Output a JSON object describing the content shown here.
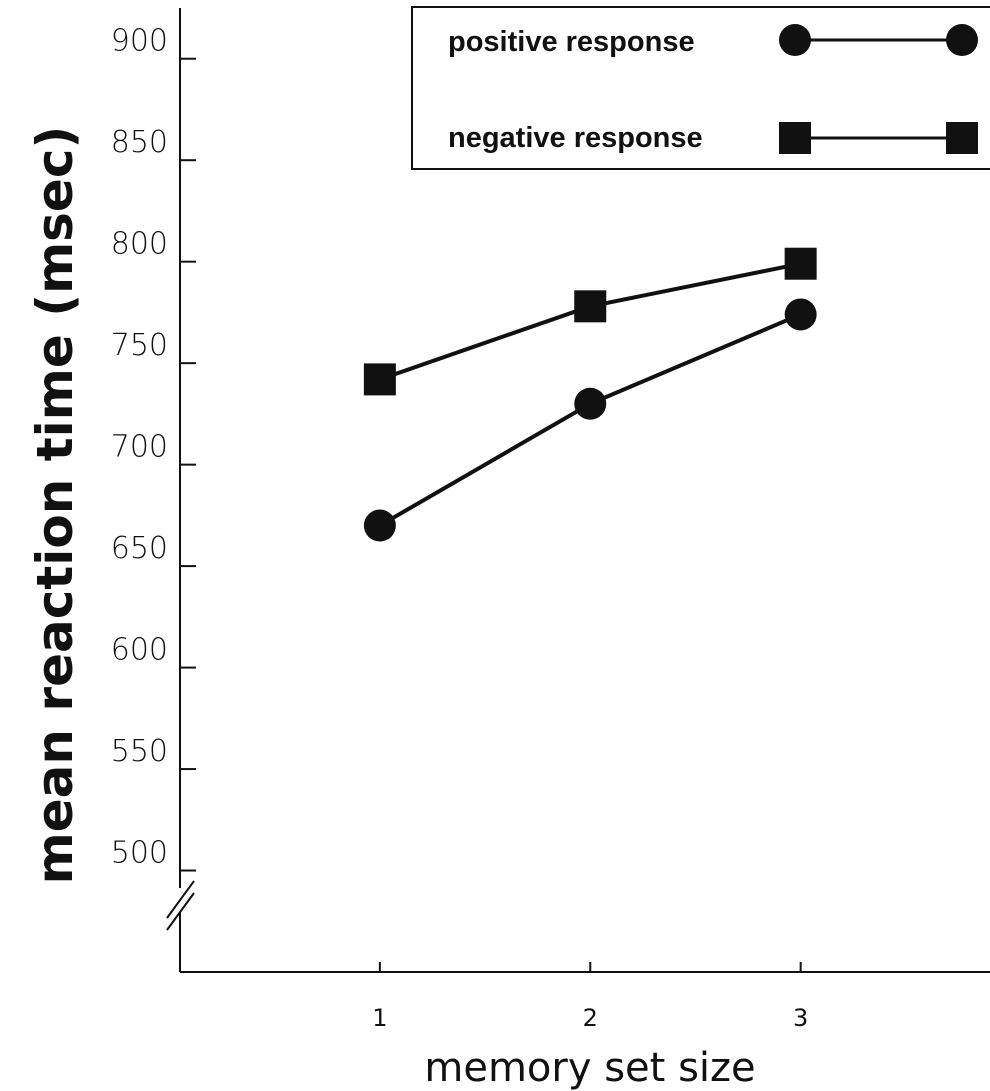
{
  "chart_data": {
    "type": "line",
    "title": "",
    "xlabel": "memory set size",
    "ylabel": "mean reaction time (msec)",
    "x": [
      1,
      2,
      3
    ],
    "x_tick_labels": [
      "1",
      "2",
      "3"
    ],
    "y_ticks": [
      500,
      550,
      600,
      650,
      700,
      750,
      800,
      850,
      900
    ],
    "y_tick_labels": [
      "500",
      "550",
      "600",
      "650",
      "700",
      "750",
      "800",
      "850",
      "900"
    ],
    "ylim": [
      450,
      925
    ],
    "xlim": [
      0.05,
      3.9
    ],
    "y_axis_break": true,
    "grid": false,
    "legend_position": "top-right",
    "series": [
      {
        "name": "positive response",
        "marker": "circle",
        "values": [
          670,
          730,
          774
        ]
      },
      {
        "name": "negative response",
        "marker": "square",
        "values": [
          742,
          778,
          799
        ]
      }
    ],
    "colors": {
      "ink": "#111111",
      "background": "#ffffff"
    }
  }
}
